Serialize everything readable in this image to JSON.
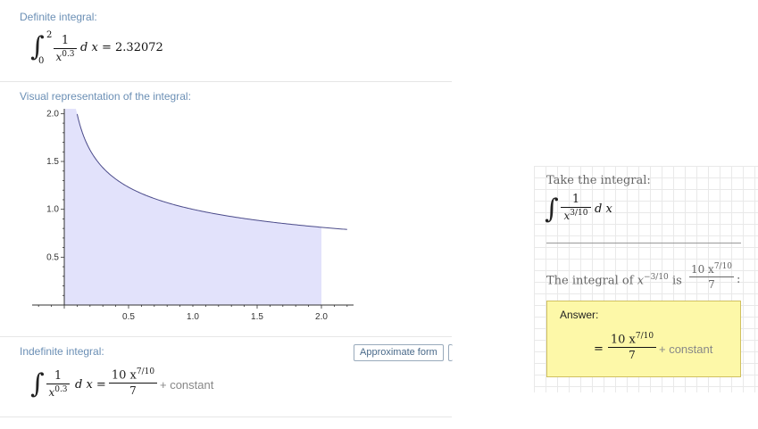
{
  "definite": {
    "title": "Definite integral:",
    "lower": "0",
    "upper": "2",
    "num": "1",
    "den_base": "x",
    "den_exp": "0.3",
    "dx": "d x",
    "result": "= 2.32072"
  },
  "visual": {
    "title": "Visual representation of the integral:"
  },
  "chart_data": {
    "type": "area",
    "function": "1/x^0.3",
    "x": [
      0.06,
      0.1,
      0.15,
      0.2,
      0.3,
      0.4,
      0.5,
      0.6,
      0.8,
      1.0,
      1.2,
      1.4,
      1.6,
      1.8,
      2.0,
      2.2
    ],
    "y": [
      2.33,
      1.995,
      1.767,
      1.621,
      1.435,
      1.316,
      1.231,
      1.166,
      1.069,
      1.0,
      0.947,
      0.904,
      0.868,
      0.838,
      0.812,
      0.789
    ],
    "shaded_range": [
      0,
      2
    ],
    "xlim": [
      -0.25,
      2.25
    ],
    "ylim": [
      0,
      2.05
    ],
    "xticks": [
      "0.5",
      "1.0",
      "1.5",
      "2.0"
    ],
    "yticks": [
      "0.5",
      "1.0",
      "1.5",
      "2.0"
    ],
    "colors": {
      "fill": "#e2e2fb",
      "line": "#4b4b8a"
    }
  },
  "indefinite": {
    "title": "Indefinite integral:",
    "approx_button": "Approximate form",
    "num": "1",
    "den_base": "x",
    "den_exp": "0.3",
    "dx": "d x =",
    "res_num_coef": "10 x",
    "res_num_exp": "7/10",
    "res_den": "7",
    "constant": "+ constant"
  },
  "step": {
    "take_label": "Take the integral:",
    "num": "1",
    "den_base": "x",
    "den_exp": "3/10",
    "dx": "d x",
    "rule_prefix": "The integral of",
    "rule_x": "x",
    "rule_exp": "−3/10",
    "rule_is": "is",
    "rule_num_coef": "10 x",
    "rule_num_exp": "7/10",
    "rule_den": "7",
    "rule_end": ":",
    "answer_label": "Answer:",
    "answer_eq": "=",
    "answer_num_coef": "10 x",
    "answer_num_exp": "7/10",
    "answer_den": "7",
    "answer_constant": "+ constant"
  }
}
